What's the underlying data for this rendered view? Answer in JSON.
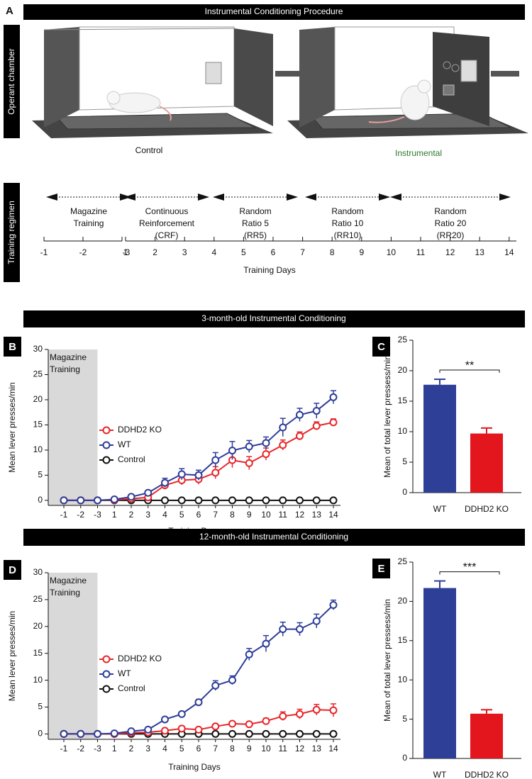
{
  "procedure": {
    "panel": "A",
    "title": "Instrumental Conditioning Procedure",
    "side_label": "Operant chamber",
    "captions": [
      "Control",
      "Instrumental"
    ],
    "regimen_label": "Training regimen",
    "phases": [
      [
        "Magazine",
        "Training"
      ],
      [
        "Continuous",
        "Reinforcement",
        "(CRF)"
      ],
      [
        "Random",
        "Ratio 5",
        "(RR5)"
      ],
      [
        "Random",
        "Ratio 10",
        "(RR10)"
      ],
      [
        "Random",
        "Ratio 20",
        "(RR20)"
      ]
    ],
    "timeline_ticks": [
      -1,
      -2,
      -3,
      1,
      2,
      3,
      4,
      5,
      6,
      7,
      8,
      9,
      10,
      11,
      12,
      13,
      14
    ],
    "xlabel": "Training Days"
  },
  "chart_data": [
    {
      "type": "line",
      "panel": "B",
      "title": "3-month-old Instrumental Conditioning",
      "ylabel": "Mean lever presses/min",
      "xlabel": "Training Days",
      "annotation": [
        "Magazine",
        "Training"
      ],
      "categories": [
        "-1",
        "-2",
        "-3",
        "1",
        "2",
        "3",
        "4",
        "5",
        "6",
        "7",
        "8",
        "9",
        "10",
        "11",
        "12",
        "13",
        "14"
      ],
      "ylim": [
        -1,
        30
      ],
      "yticks": [
        0,
        5,
        10,
        15,
        20,
        25,
        30
      ],
      "series": [
        {
          "name": "DDHD2 KO",
          "color": "#e8262a",
          "values": [
            0,
            0,
            0,
            0.1,
            0.3,
            0.6,
            3.0,
            4.0,
            4.2,
            5.5,
            8.0,
            7.4,
            9.2,
            11.0,
            12.8,
            14.8,
            15.5
          ],
          "errors": [
            0,
            0,
            0,
            0.1,
            0.2,
            0.3,
            0.7,
            0.9,
            1.0,
            1.2,
            1.5,
            1.3,
            1.2,
            1.0,
            0.8,
            0.8,
            0.7
          ]
        },
        {
          "name": "WT",
          "color": "#2e3d98",
          "values": [
            0,
            0,
            0,
            0.2,
            0.7,
            1.5,
            3.5,
            5.2,
            5.0,
            8.0,
            9.9,
            10.7,
            11.4,
            14.5,
            17.0,
            17.8,
            20.5
          ],
          "errors": [
            0,
            0,
            0,
            0.1,
            0.3,
            0.4,
            0.9,
            1.1,
            1.0,
            1.5,
            1.8,
            1.2,
            1.2,
            1.8,
            1.3,
            1.5,
            1.3
          ]
        },
        {
          "name": "Control",
          "color": "#111111",
          "values": [
            0,
            0,
            0,
            0,
            0,
            0,
            0,
            0,
            0,
            0,
            0,
            0,
            0,
            0,
            0,
            0,
            0
          ]
        }
      ]
    },
    {
      "type": "bar",
      "panel": "C",
      "ylabel": "Mean of total lever pressess/min",
      "annotation": "**",
      "categories": [
        "WT",
        "DDHD2 KO"
      ],
      "values": [
        17.7,
        9.7
      ],
      "errors": [
        0.9,
        0.9
      ],
      "colors": [
        "#2e3f98",
        "#e3161e"
      ],
      "ylim": [
        0,
        25
      ],
      "yticks": [
        0,
        5,
        10,
        15,
        20,
        25
      ]
    },
    {
      "type": "line",
      "panel": "D",
      "title": "12-month-old Instrumental Conditioning",
      "ylabel": "Mean lever presses/min",
      "xlabel": "Training Days",
      "annotation": [
        "Magazine",
        "Training"
      ],
      "categories": [
        "-1",
        "-2",
        "-3",
        "1",
        "2",
        "3",
        "4",
        "5",
        "6",
        "7",
        "8",
        "9",
        "10",
        "11",
        "12",
        "13",
        "14"
      ],
      "ylim": [
        -1,
        30
      ],
      "yticks": [
        0,
        5,
        10,
        15,
        20,
        25,
        30
      ],
      "series": [
        {
          "name": "DDHD2 KO",
          "color": "#e8262a",
          "values": [
            0,
            0,
            0,
            0,
            0.2,
            0.3,
            0.6,
            1.0,
            0.8,
            1.4,
            1.9,
            1.8,
            2.4,
            3.3,
            3.7,
            4.5,
            4.4
          ],
          "errors": [
            0,
            0,
            0,
            0,
            0.1,
            0.1,
            0.2,
            0.3,
            0.3,
            0.4,
            0.4,
            0.4,
            0.5,
            0.8,
            0.9,
            1.0,
            1.2
          ]
        },
        {
          "name": "WT",
          "color": "#2e3d98",
          "values": [
            0,
            0,
            0,
            0.1,
            0.5,
            0.8,
            2.7,
            3.7,
            5.9,
            9.0,
            10.0,
            14.8,
            16.8,
            19.5,
            19.5,
            21.0,
            24.0
          ],
          "errors": [
            0,
            0,
            0,
            0.1,
            0.2,
            0.3,
            0.4,
            0.4,
            0.5,
            0.9,
            0.8,
            1.1,
            1.5,
            1.3,
            1.2,
            1.3,
            0.9
          ]
        },
        {
          "name": "Control",
          "color": "#111111",
          "values": [
            0,
            0,
            0,
            0,
            0,
            0,
            0,
            0,
            0,
            0,
            0,
            0,
            0,
            0,
            0,
            0,
            0
          ]
        }
      ]
    },
    {
      "type": "bar",
      "panel": "E",
      "ylabel": "Mean of total lever pressess/min",
      "annotation": "***",
      "categories": [
        "WT",
        "DDHD2 KO"
      ],
      "values": [
        21.7,
        5.7
      ],
      "errors": [
        0.9,
        0.5
      ],
      "colors": [
        "#2e3f98",
        "#e3161e"
      ],
      "ylim": [
        0,
        25
      ],
      "yticks": [
        0,
        5,
        10,
        15,
        20,
        25
      ]
    }
  ]
}
